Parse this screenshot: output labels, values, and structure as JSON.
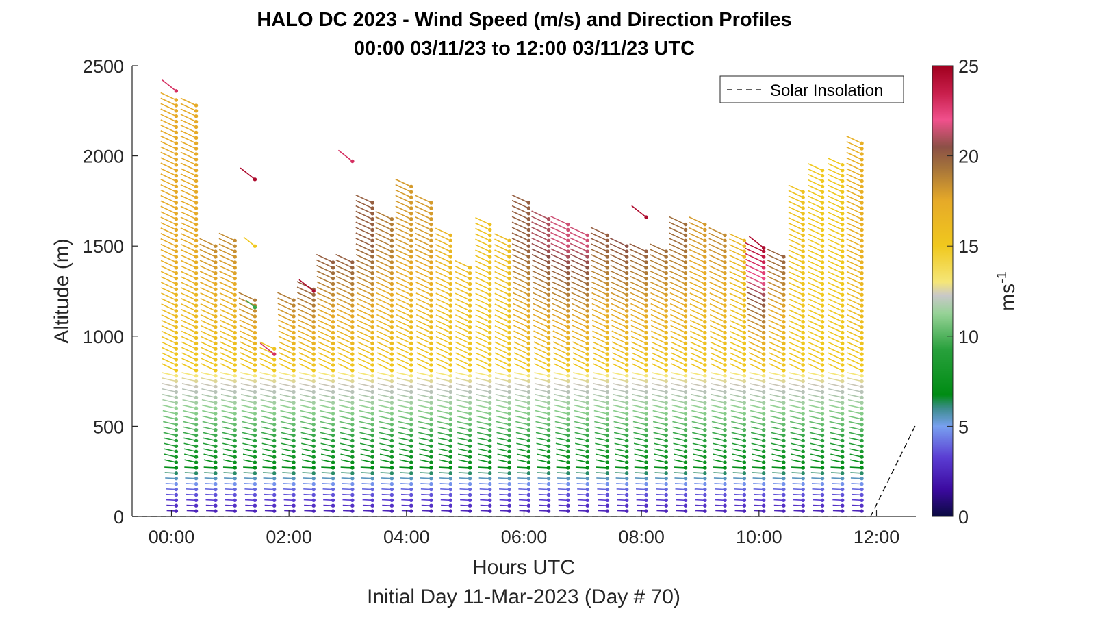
{
  "chart_data": {
    "type": "scatter",
    "title": "HALO DC 2023 - Wind Speed (m/s) and Direction Profiles",
    "subtitle": "00:00 03/11/23 to 12:00 03/11/23  UTC",
    "xlabel": "Hours UTC",
    "xlabel2": "Initial Day 11-Mar-2023 (Day # 70)",
    "ylabel": "Altitude (m)",
    "xlim": [
      -0.67,
      12.67
    ],
    "ylim": [
      0,
      2500
    ],
    "x_ticks": [
      0,
      2,
      4,
      6,
      8,
      10,
      12
    ],
    "x_tick_labels": [
      "00:00",
      "02:00",
      "04:00",
      "06:00",
      "08:00",
      "10:00",
      "12:00"
    ],
    "y_ticks": [
      0,
      500,
      1000,
      1500,
      2000,
      2500
    ],
    "y_tick_labels": [
      "0",
      "500",
      "1000",
      "1500",
      "2000",
      "2500"
    ],
    "legend": {
      "label": "Solar Insolation",
      "position": "top-right",
      "style": "dashed"
    },
    "colorbar": {
      "label": "ms",
      "label_superscript": "-1",
      "range": [
        0,
        25
      ],
      "ticks": [
        "0",
        "5",
        "10",
        "15",
        "20",
        "25"
      ]
    },
    "solar_insolation": {
      "x": [
        -0.67,
        11.9,
        12.67
      ],
      "y": [
        0,
        0,
        510
      ]
    },
    "profiles": [
      {
        "time": 0.08,
        "top": 2330,
        "top_speed": 17.5
      },
      {
        "time": 0.42,
        "top": 2280,
        "top_speed": 17.5
      },
      {
        "time": 0.75,
        "top": 1500,
        "top_speed": 18.5
      },
      {
        "time": 1.08,
        "top": 1530,
        "top_speed": 18.5
      },
      {
        "time": 1.42,
        "top": 1200,
        "top_speed": 19.0
      },
      {
        "time": 1.75,
        "top": 950,
        "top_speed": 15.5
      },
      {
        "time": 2.08,
        "top": 1200,
        "top_speed": 19.0
      },
      {
        "time": 2.42,
        "top": 1260,
        "top_speed": 20.0
      },
      {
        "time": 2.75,
        "top": 1410,
        "top_speed": 20.0
      },
      {
        "time": 3.08,
        "top": 1410,
        "top_speed": 20.0
      },
      {
        "time": 3.42,
        "top": 1740,
        "top_speed": 20.0
      },
      {
        "time": 3.75,
        "top": 1660,
        "top_speed": 19.0
      },
      {
        "time": 4.08,
        "top": 1830,
        "top_speed": 18.0
      },
      {
        "time": 4.42,
        "top": 1740,
        "top_speed": 18.0
      },
      {
        "time": 4.75,
        "top": 1570,
        "top_speed": 16.5
      },
      {
        "time": 5.08,
        "top": 1380,
        "top_speed": 16.0
      },
      {
        "time": 5.42,
        "top": 1620,
        "top_speed": 15.5
      },
      {
        "time": 5.75,
        "top": 1530,
        "top_speed": 16.0
      },
      {
        "time": 6.08,
        "top": 1740,
        "top_speed": 20.0
      },
      {
        "time": 6.42,
        "top": 1660,
        "top_speed": 21.0
      },
      {
        "time": 6.75,
        "top": 1620,
        "top_speed": 21.5
      },
      {
        "time": 7.08,
        "top": 1580,
        "top_speed": 21.5
      },
      {
        "time": 7.42,
        "top": 1560,
        "top_speed": 20.0
      },
      {
        "time": 7.75,
        "top": 1500,
        "top_speed": 20.5
      },
      {
        "time": 8.08,
        "top": 1470,
        "top_speed": 20.0
      },
      {
        "time": 8.42,
        "top": 1470,
        "top_speed": 19.5
      },
      {
        "time": 8.75,
        "top": 1620,
        "top_speed": 19.5
      },
      {
        "time": 9.08,
        "top": 1620,
        "top_speed": 18.0
      },
      {
        "time": 9.42,
        "top": 1560,
        "top_speed": 18.5
      },
      {
        "time": 9.75,
        "top": 1530,
        "top_speed": 16.5
      },
      {
        "time": 10.08,
        "top": 1490,
        "top_speed": 24.5
      },
      {
        "time": 10.42,
        "top": 1460,
        "top_speed": 20.0
      },
      {
        "time": 10.75,
        "top": 1800,
        "top_speed": 15.5
      },
      {
        "time": 11.08,
        "top": 1920,
        "top_speed": 15.0
      },
      {
        "time": 11.42,
        "top": 1960,
        "top_speed": 15.0
      },
      {
        "time": 11.75,
        "top": 2070,
        "top_speed": 17.0
      }
    ],
    "isolated_points": [
      {
        "time": 0.08,
        "altitude": 2360,
        "speed": 23.0
      },
      {
        "time": 1.42,
        "altitude": 1870,
        "speed": 24.5
      },
      {
        "time": 1.42,
        "altitude": 1500,
        "speed": 15.0
      },
      {
        "time": 1.42,
        "altitude": 1160,
        "speed": 9.5
      },
      {
        "time": 1.75,
        "altitude": 900,
        "speed": 23.0
      },
      {
        "time": 2.42,
        "altitude": 1250,
        "speed": 24.5
      },
      {
        "time": 3.08,
        "altitude": 1970,
        "speed": 23.0
      },
      {
        "time": 8.08,
        "altitude": 1660,
        "speed": 24.5
      },
      {
        "time": 10.08,
        "altitude": 1490,
        "speed": 24.5
      }
    ]
  }
}
